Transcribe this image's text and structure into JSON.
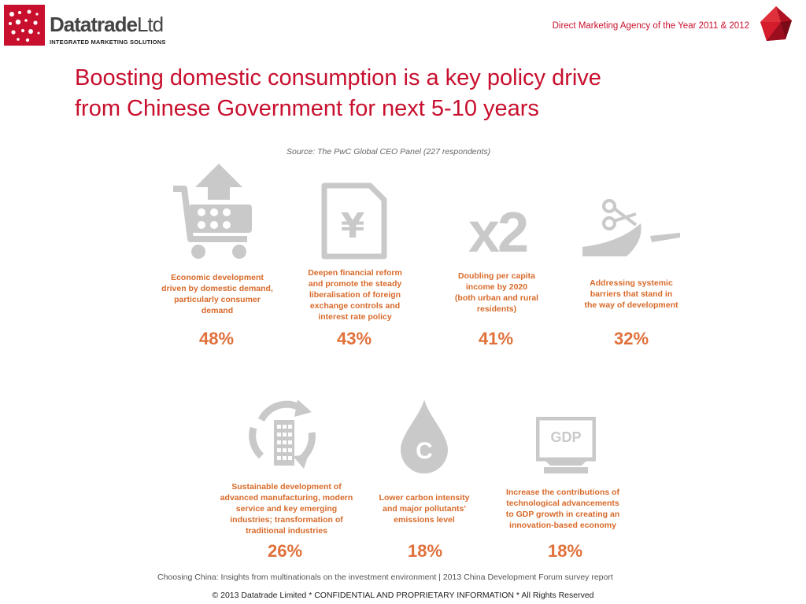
{
  "header": {
    "logo_name": "Datatrade",
    "logo_suffix": "Ltd",
    "logo_tagline": "INTEGRATED MARKETING SOLUTIONS",
    "award_text": "Direct Marketing Agency of the Year 2011 & 2012"
  },
  "title": {
    "line1": "Boosting domestic consumption is a key policy drive",
    "line2": "from Chinese Government for next 5-10 years"
  },
  "source": "Source: The PwC Global CEO Panel (227 respondents)",
  "items": [
    {
      "icon": "shopping-cart-arrow-icon",
      "text": "Economic development\ndriven by domestic demand,\nparticularly consumer\ndemand",
      "percent": "48%"
    },
    {
      "icon": "yen-document-icon",
      "text": "Deepen financial reform\nand promote the steady\nliberalisation of foreign\nexchange controls and\ninterest rate policy",
      "percent": "43%"
    },
    {
      "icon": "x2-icon",
      "icon_text": "x2",
      "text": "Doubling per capita\nincome by 2020\n(both urban and rural\nresidents)",
      "percent": "41%"
    },
    {
      "icon": "scissors-icon",
      "text": "Addressing systemic\nbarriers that stand in\nthe way of development",
      "percent": "32%"
    },
    {
      "icon": "recycle-building-icon",
      "text": "Sustainable development of\nadvanced manufacturing, modern\nservice and key emerging\nindustries; transformation of\ntraditional industries",
      "percent": "26%"
    },
    {
      "icon": "carbon-drop-icon",
      "icon_text": "C",
      "text": "Lower carbon intensity\nand major pollutants'\nemissions level",
      "percent": "18%"
    },
    {
      "icon": "gdp-monitor-icon",
      "icon_text": "GDP",
      "text": "Increase the contributions of\ntechnological advancements\nto GDP growth in creating an\ninnovation-based economy",
      "percent": "18%"
    }
  ],
  "caption": "Choosing China: Insights from multinationals on the investment environment | 2013 China Development Forum survey report",
  "footer": "© 2013 Datatrade Limited *  CONFIDENTIAL AND PROPRIETARY INFORMATION  * All Rights Reserved",
  "colors": {
    "brand_red": "#c8102e",
    "accent_orange": "#e0703a",
    "icon_grey": "#c9c9c9"
  }
}
